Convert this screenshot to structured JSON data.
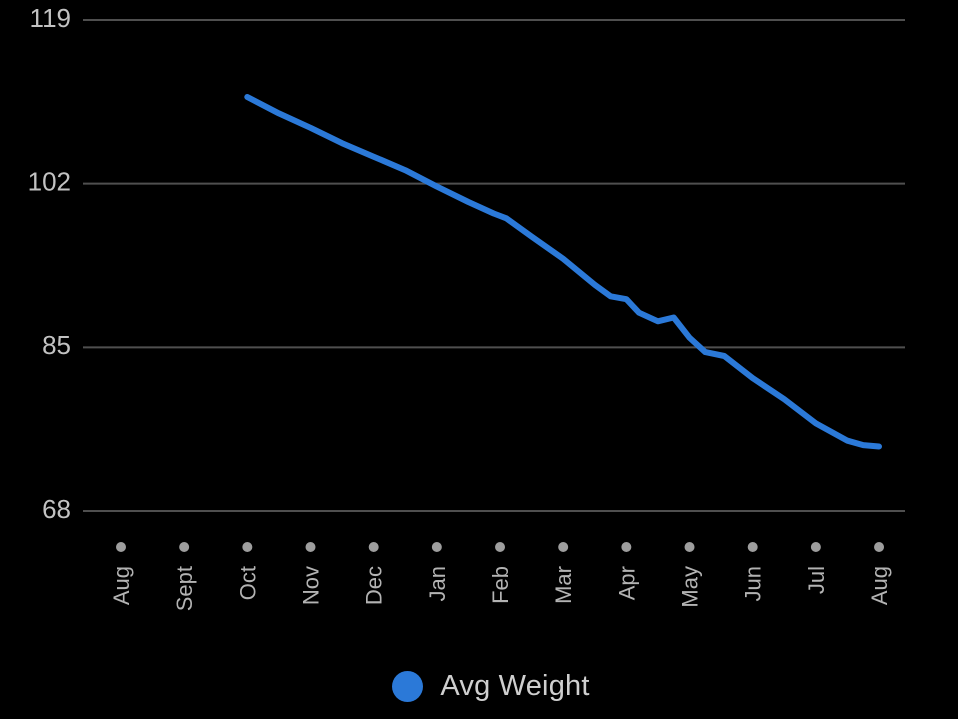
{
  "page": {
    "background": "#000000"
  },
  "chart_data": {
    "type": "line",
    "title": "",
    "xlabel": "",
    "ylabel": "",
    "x_tick_labels": [
      "Aug",
      "Sept",
      "Oct",
      "Nov",
      "Dec",
      "Jan",
      "Feb",
      "Mar",
      "Apr",
      "May",
      "Jun",
      "Jul",
      "Aug"
    ],
    "y_ticks": [
      "119",
      "102",
      "85",
      "68"
    ],
    "y_tick_values": [
      119,
      102,
      85,
      68
    ],
    "ylim": [
      68,
      119
    ],
    "x_months_range": [
      0,
      12
    ],
    "grid": "horizontal-only",
    "legend_position": "bottom-center",
    "series": [
      {
        "name": "Avg Weight",
        "color": "#2b79d8",
        "points": [
          [
            2.0,
            111.0
          ],
          [
            2.5,
            109.3
          ],
          [
            3.0,
            107.8
          ],
          [
            3.5,
            106.2
          ],
          [
            4.0,
            104.8
          ],
          [
            4.5,
            103.4
          ],
          [
            5.0,
            101.7
          ],
          [
            5.5,
            100.1
          ],
          [
            5.9,
            98.9
          ],
          [
            6.1,
            98.4
          ],
          [
            6.5,
            96.5
          ],
          [
            7.0,
            94.2
          ],
          [
            7.5,
            91.5
          ],
          [
            7.75,
            90.3
          ],
          [
            8.0,
            90.0
          ],
          [
            8.2,
            88.6
          ],
          [
            8.5,
            87.7
          ],
          [
            8.75,
            88.1
          ],
          [
            9.0,
            86.0
          ],
          [
            9.25,
            84.5
          ],
          [
            9.55,
            84.1
          ],
          [
            10.0,
            81.8
          ],
          [
            10.5,
            79.6
          ],
          [
            11.0,
            77.1
          ],
          [
            11.5,
            75.3
          ],
          [
            11.75,
            74.85
          ],
          [
            12.0,
            74.7
          ]
        ]
      }
    ],
    "colors": {
      "background": "#000000",
      "gridline": "#4f4f4f",
      "y_axis_label": "#c2c2c2",
      "x_axis_label": "#b3b3b3",
      "tick_dot": "#9e9e9e",
      "line": "#2b79d8"
    }
  },
  "legend": {
    "label": "Avg Weight",
    "swatch_color": "#2b79d8"
  }
}
